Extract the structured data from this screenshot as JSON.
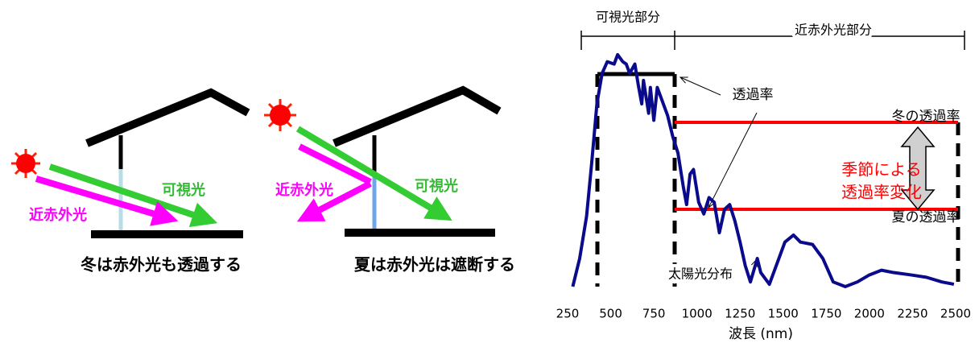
{
  "winter": {
    "visible_label": "可視光",
    "nir_label": "近赤外光",
    "caption": "冬は赤外光も透過する"
  },
  "summer": {
    "visible_label": "可視光",
    "nir_label": "近赤外光",
    "caption": "夏は赤外光は遮断する"
  },
  "chart_data": {
    "type": "line",
    "color": "#0a0a8c",
    "xlabel": "波長 (nm)",
    "x": [
      280,
      320,
      360,
      390,
      420,
      450,
      480,
      520,
      540,
      570,
      590,
      610,
      640,
      660,
      680,
      690,
      720,
      730,
      750,
      770,
      800,
      830,
      860,
      890,
      920,
      940,
      960,
      980,
      1010,
      1040,
      1070,
      1100,
      1130,
      1160,
      1190,
      1220,
      1250,
      1280,
      1310,
      1350,
      1370,
      1420,
      1460,
      1510,
      1560,
      1600,
      1670,
      1730,
      1790,
      1860,
      1930,
      2000,
      2070,
      2140,
      2240,
      2330,
      2420,
      2490
    ],
    "values": [
      0,
      12,
      30,
      53,
      78,
      91,
      96,
      95,
      99,
      96,
      95,
      91,
      95,
      86,
      78,
      88,
      74,
      85,
      71,
      85,
      79,
      73,
      64,
      57,
      43,
      35,
      48,
      50,
      36,
      31,
      38,
      36,
      23,
      33,
      35,
      28,
      19,
      9,
      2,
      12,
      6,
      1,
      9,
      19,
      22,
      19,
      18,
      12,
      2,
      0,
      2,
      5,
      7,
      6,
      5,
      4,
      2,
      1
    ],
    "xlim": [
      250,
      2500
    ],
    "ylim": [
      0,
      100
    ],
    "xticks": [
      250,
      500,
      750,
      1000,
      1250,
      1500,
      1750,
      2000,
      2250,
      2500
    ],
    "annotations": [
      "可視光部分",
      "近赤外光部分",
      "透過率",
      "冬の透過率",
      "夏の透過率",
      "季節による",
      "透過率変化",
      "太陽光分布"
    ]
  }
}
